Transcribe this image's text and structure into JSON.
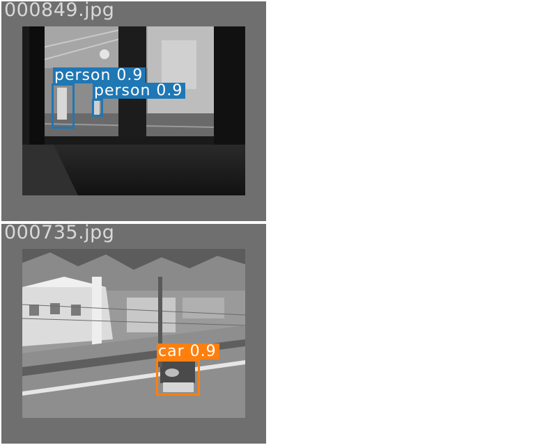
{
  "panels": [
    {
      "filename": "000849.jpg",
      "detections": [
        {
          "class": "person",
          "score": "0.9",
          "color": "#1f77b4"
        },
        {
          "class": "person",
          "score": "0.9",
          "color": "#1f77b4"
        }
      ]
    },
    {
      "filename": "000735.jpg",
      "detections": [
        {
          "class": "car",
          "score": "0.9",
          "color": "#ff7f0e"
        }
      ]
    }
  ],
  "colors": {
    "panel_bg": "#6f6f6f",
    "filename_text": "#d9d9d9",
    "person": "#1f77b4",
    "car": "#ff7f0e"
  }
}
